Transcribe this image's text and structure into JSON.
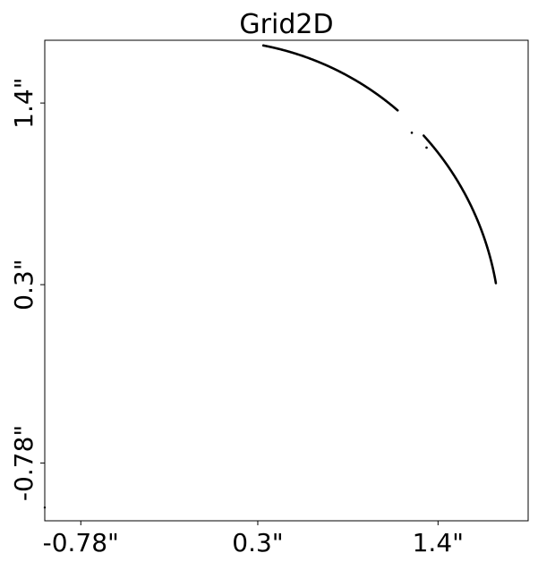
{
  "chart_data": {
    "type": "scatter",
    "title": "Grid2D",
    "xlabel": "",
    "ylabel": "",
    "xlim": [
      -1.0,
      1.95
    ],
    "ylim": [
      -1.13,
      1.78
    ],
    "x_ticks": [
      {
        "value": -0.78,
        "label": "-0.78\""
      },
      {
        "value": 0.3,
        "label": "0.3\""
      },
      {
        "value": 1.4,
        "label": "1.4\""
      }
    ],
    "y_ticks": [
      {
        "value": -0.78,
        "label": "-0.78\""
      },
      {
        "value": 0.3,
        "label": "0.3\""
      },
      {
        "value": 1.4,
        "label": "1.4\""
      }
    ],
    "grid": false,
    "legend": "none",
    "marker_color": "#000000",
    "arc": {
      "center": [
        0.0,
        0.0
      ],
      "radius": 1.78,
      "segments": [
        {
          "theta_start_deg": 10.0,
          "theta_end_deg": 42.5
        },
        {
          "theta_start_deg": 49.6,
          "theta_end_deg": 79.2
        }
      ],
      "isolated_points": [
        {
          "x": 1.24,
          "y": 1.22
        },
        {
          "x": 1.33,
          "y": 1.13
        }
      ]
    },
    "outlier_points": [
      {
        "x": -1.0,
        "y": -1.05
      }
    ]
  }
}
